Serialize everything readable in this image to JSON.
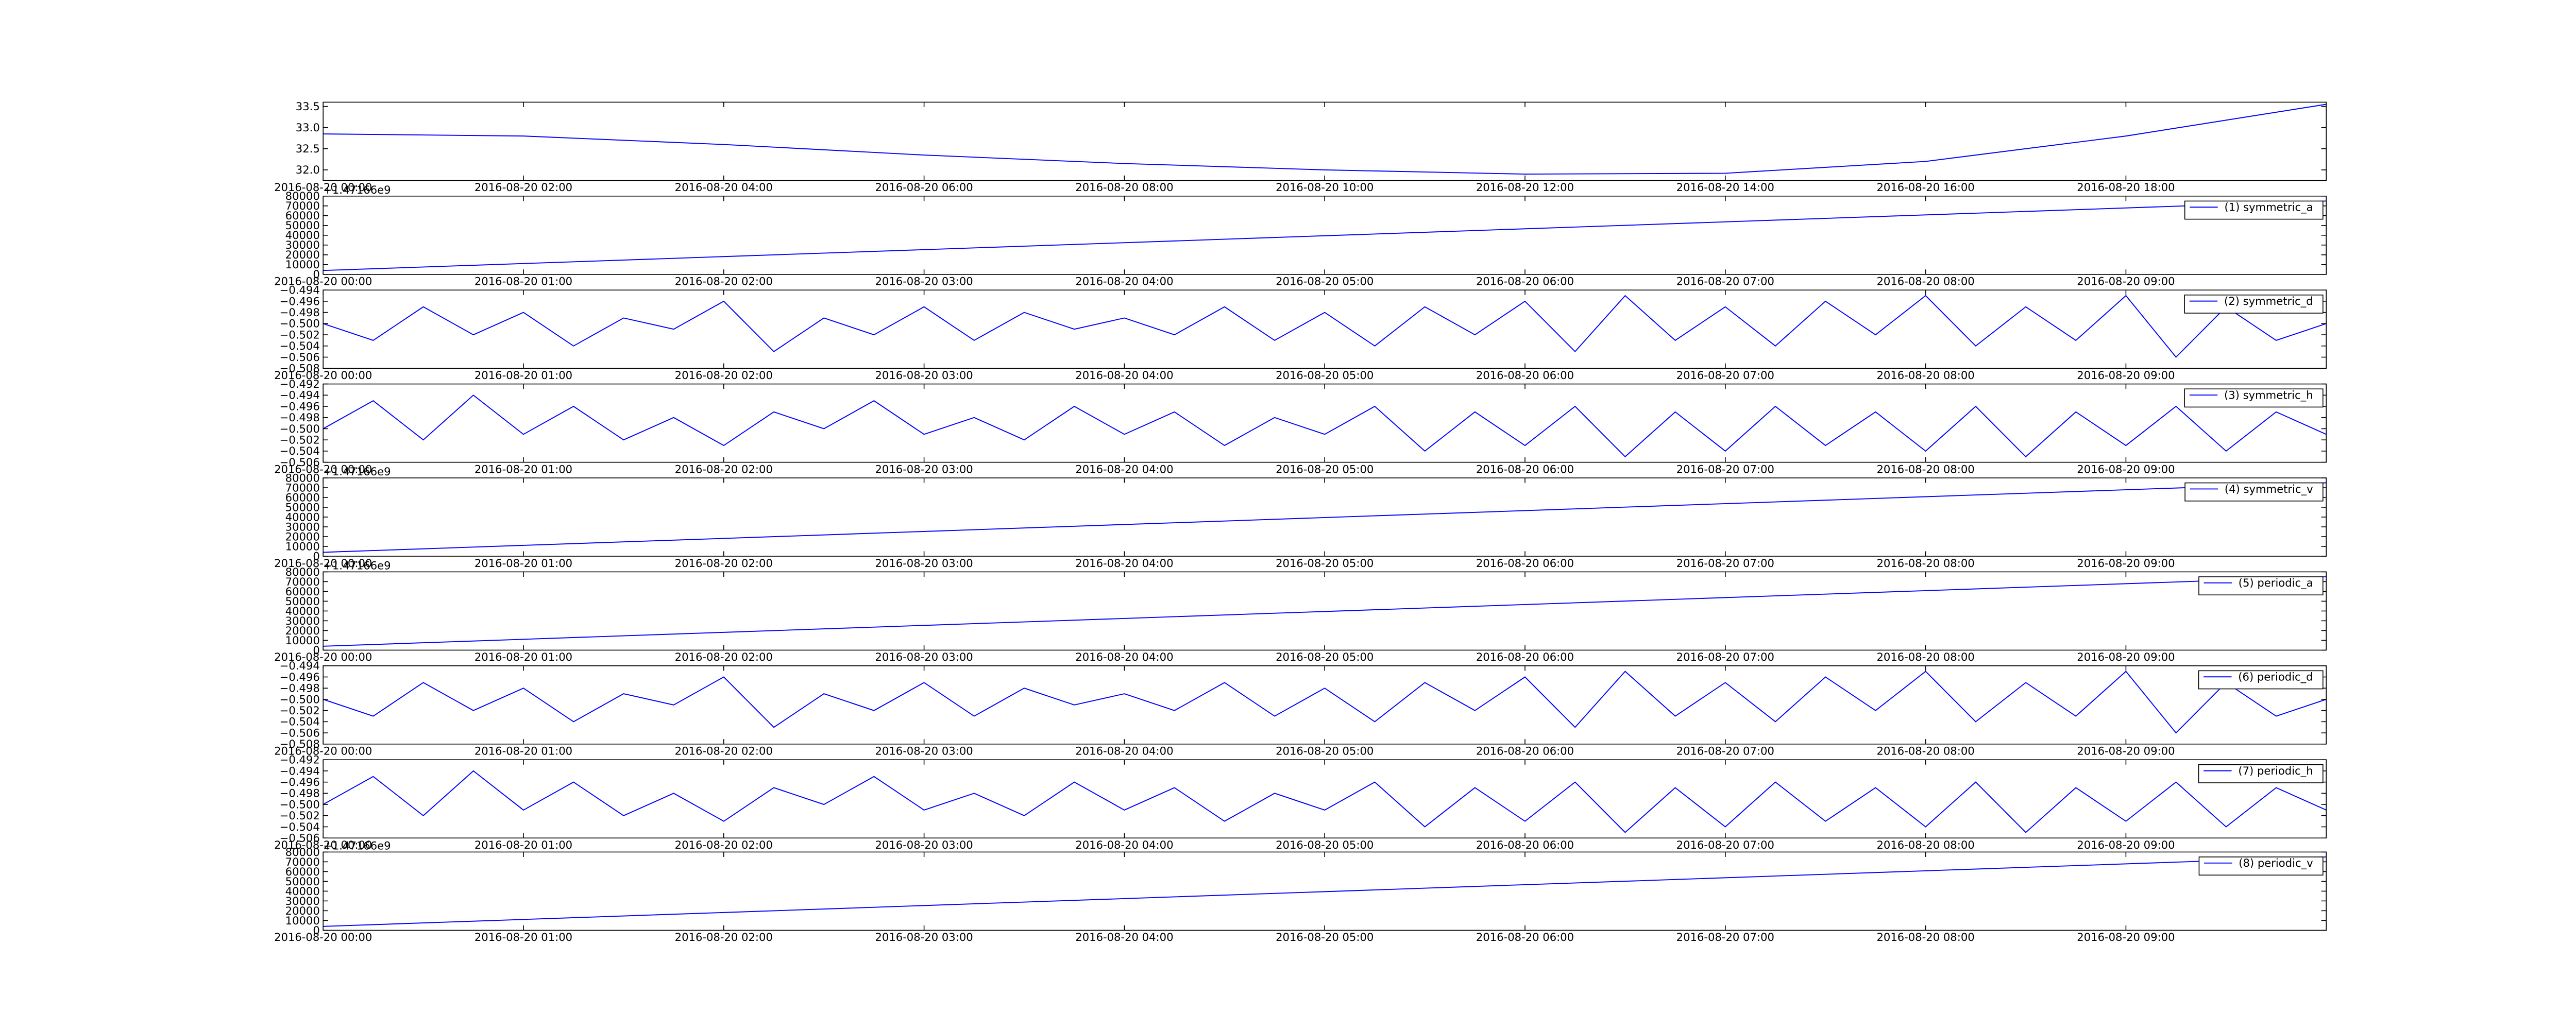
{
  "chart_data": [
    {
      "type": "line",
      "xlim": [
        "2016-08-20 00:00",
        "2016-08-20 20:00"
      ],
      "xticks": [
        "2016-08-20 00:00",
        "2016-08-20 02:00",
        "2016-08-20 04:00",
        "2016-08-20 06:00",
        "2016-08-20 08:00",
        "2016-08-20 10:00",
        "2016-08-20 12:00",
        "2016-08-20 14:00",
        "2016-08-20 16:00",
        "2016-08-20 18:00"
      ],
      "ylim": [
        31.75,
        33.6
      ],
      "yticks": [
        {
          "value": 32,
          "label": "32.0"
        },
        {
          "value": 32.5,
          "label": "32.5"
        },
        {
          "value": 33,
          "label": "33.0"
        },
        {
          "value": 33.5,
          "label": "33.5"
        }
      ],
      "x": [
        "2016-08-20 00:00",
        "2016-08-20 02:00",
        "2016-08-20 04:00",
        "2016-08-20 06:00",
        "2016-08-20 08:00",
        "2016-08-20 10:00",
        "2016-08-20 12:00",
        "2016-08-20 14:00",
        "2016-08-20 16:00",
        "2016-08-20 18:00",
        "2016-08-20 20:00"
      ],
      "series": [
        {
          "color": "#0000ff",
          "values": [
            32.85,
            32.8,
            32.6,
            32.35,
            32.15,
            32.0,
            31.9,
            31.92,
            32.2,
            32.8,
            33.55
          ]
        }
      ]
    },
    {
      "type": "line",
      "offset_label": "+1.47166e9",
      "xlim": [
        "2016-08-20 00:00",
        "2016-08-20 10:00"
      ],
      "xticks": [
        "2016-08-20 00:00",
        "2016-08-20 01:00",
        "2016-08-20 02:00",
        "2016-08-20 03:00",
        "2016-08-20 04:00",
        "2016-08-20 05:00",
        "2016-08-20 06:00",
        "2016-08-20 07:00",
        "2016-08-20 08:00",
        "2016-08-20 09:00"
      ],
      "ylim": [
        0,
        80000
      ],
      "yticks": [
        0,
        10000,
        20000,
        30000,
        40000,
        50000,
        60000,
        70000,
        80000
      ],
      "x": [
        "2016-08-20 00:00",
        "2016-08-20 05:00",
        "2016-08-20 10:00"
      ],
      "series": [
        {
          "name": "(1) symmetric_a",
          "color": "#0000ff",
          "values": [
            4000,
            39500,
            75000
          ]
        }
      ]
    },
    {
      "type": "line",
      "xlim": [
        "2016-08-20 00:00",
        "2016-08-20 10:00"
      ],
      "xticks": [
        "2016-08-20 00:00",
        "2016-08-20 01:00",
        "2016-08-20 02:00",
        "2016-08-20 03:00",
        "2016-08-20 04:00",
        "2016-08-20 05:00",
        "2016-08-20 06:00",
        "2016-08-20 07:00",
        "2016-08-20 08:00",
        "2016-08-20 09:00"
      ],
      "ylim": [
        -0.508,
        -0.494
      ],
      "yticks": [
        {
          "value": -0.508,
          "label": "−0.508"
        },
        {
          "value": -0.506,
          "label": "−0.506"
        },
        {
          "value": -0.504,
          "label": "−0.504"
        },
        {
          "value": -0.502,
          "label": "−0.502"
        },
        {
          "value": -0.5,
          "label": "−0.500"
        },
        {
          "value": -0.498,
          "label": "−0.498"
        },
        {
          "value": -0.496,
          "label": "−0.496"
        },
        {
          "value": -0.494,
          "label": "−0.494"
        }
      ],
      "x": [
        "2016-08-20 00:00",
        "2016-08-20 00:15",
        "2016-08-20 00:30",
        "2016-08-20 00:45",
        "2016-08-20 01:00",
        "2016-08-20 01:15",
        "2016-08-20 01:30",
        "2016-08-20 01:45",
        "2016-08-20 02:00",
        "2016-08-20 02:15",
        "2016-08-20 02:30",
        "2016-08-20 02:45",
        "2016-08-20 03:00",
        "2016-08-20 03:15",
        "2016-08-20 03:30",
        "2016-08-20 03:45",
        "2016-08-20 04:00",
        "2016-08-20 04:15",
        "2016-08-20 04:30",
        "2016-08-20 04:45",
        "2016-08-20 05:00",
        "2016-08-20 05:15",
        "2016-08-20 05:30",
        "2016-08-20 05:45",
        "2016-08-20 06:00",
        "2016-08-20 06:15",
        "2016-08-20 06:30",
        "2016-08-20 06:45",
        "2016-08-20 07:00",
        "2016-08-20 07:15",
        "2016-08-20 07:30",
        "2016-08-20 07:45",
        "2016-08-20 08:00",
        "2016-08-20 08:15",
        "2016-08-20 08:30",
        "2016-08-20 08:45",
        "2016-08-20 09:00",
        "2016-08-20 09:15",
        "2016-08-20 09:30",
        "2016-08-20 09:45",
        "2016-08-20 10:00"
      ],
      "series": [
        {
          "name": "(2) symmetric_d",
          "color": "#0000ff",
          "values": [
            -0.5,
            -0.503,
            -0.497,
            -0.502,
            -0.498,
            -0.504,
            -0.499,
            -0.501,
            -0.496,
            -0.505,
            -0.499,
            -0.502,
            -0.497,
            -0.503,
            -0.498,
            -0.501,
            -0.499,
            -0.502,
            -0.497,
            -0.503,
            -0.498,
            -0.504,
            -0.497,
            -0.502,
            -0.496,
            -0.505,
            -0.495,
            -0.503,
            -0.497,
            -0.504,
            -0.496,
            -0.502,
            -0.495,
            -0.504,
            -0.497,
            -0.503,
            -0.495,
            -0.506,
            -0.497,
            -0.503,
            -0.5
          ]
        }
      ]
    },
    {
      "type": "line",
      "xlim": [
        "2016-08-20 00:00",
        "2016-08-20 10:00"
      ],
      "xticks": [
        "2016-08-20 00:00",
        "2016-08-20 01:00",
        "2016-08-20 02:00",
        "2016-08-20 03:00",
        "2016-08-20 04:00",
        "2016-08-20 05:00",
        "2016-08-20 06:00",
        "2016-08-20 07:00",
        "2016-08-20 08:00",
        "2016-08-20 09:00"
      ],
      "ylim": [
        -0.506,
        -0.492
      ],
      "yticks": [
        {
          "value": -0.506,
          "label": "−0.506"
        },
        {
          "value": -0.504,
          "label": "−0.504"
        },
        {
          "value": -0.502,
          "label": "−0.502"
        },
        {
          "value": -0.5,
          "label": "−0.500"
        },
        {
          "value": -0.498,
          "label": "−0.498"
        },
        {
          "value": -0.496,
          "label": "−0.496"
        },
        {
          "value": -0.494,
          "label": "−0.494"
        },
        {
          "value": -0.492,
          "label": "−0.492"
        }
      ],
      "x": [
        "2016-08-20 00:00",
        "2016-08-20 00:15",
        "2016-08-20 00:30",
        "2016-08-20 00:45",
        "2016-08-20 01:00",
        "2016-08-20 01:15",
        "2016-08-20 01:30",
        "2016-08-20 01:45",
        "2016-08-20 02:00",
        "2016-08-20 02:15",
        "2016-08-20 02:30",
        "2016-08-20 02:45",
        "2016-08-20 03:00",
        "2016-08-20 03:15",
        "2016-08-20 03:30",
        "2016-08-20 03:45",
        "2016-08-20 04:00",
        "2016-08-20 04:15",
        "2016-08-20 04:30",
        "2016-08-20 04:45",
        "2016-08-20 05:00",
        "2016-08-20 05:15",
        "2016-08-20 05:30",
        "2016-08-20 05:45",
        "2016-08-20 06:00",
        "2016-08-20 06:15",
        "2016-08-20 06:30",
        "2016-08-20 06:45",
        "2016-08-20 07:00",
        "2016-08-20 07:15",
        "2016-08-20 07:30",
        "2016-08-20 07:45",
        "2016-08-20 08:00",
        "2016-08-20 08:15",
        "2016-08-20 08:30",
        "2016-08-20 08:45",
        "2016-08-20 09:00",
        "2016-08-20 09:15",
        "2016-08-20 09:30",
        "2016-08-20 09:45",
        "2016-08-20 10:00"
      ],
      "series": [
        {
          "name": "(3) symmetric_h",
          "color": "#0000ff",
          "values": [
            -0.5,
            -0.495,
            -0.502,
            -0.494,
            -0.501,
            -0.496,
            -0.502,
            -0.498,
            -0.503,
            -0.497,
            -0.5,
            -0.495,
            -0.501,
            -0.498,
            -0.502,
            -0.496,
            -0.501,
            -0.497,
            -0.503,
            -0.498,
            -0.501,
            -0.496,
            -0.504,
            -0.497,
            -0.503,
            -0.496,
            -0.505,
            -0.497,
            -0.504,
            -0.496,
            -0.503,
            -0.497,
            -0.504,
            -0.496,
            -0.505,
            -0.497,
            -0.503,
            -0.496,
            -0.504,
            -0.497,
            -0.501
          ]
        }
      ]
    },
    {
      "type": "line",
      "offset_label": "+1.47166e9",
      "xlim": [
        "2016-08-20 00:00",
        "2016-08-20 10:00"
      ],
      "xticks": [
        "2016-08-20 00:00",
        "2016-08-20 01:00",
        "2016-08-20 02:00",
        "2016-08-20 03:00",
        "2016-08-20 04:00",
        "2016-08-20 05:00",
        "2016-08-20 06:00",
        "2016-08-20 07:00",
        "2016-08-20 08:00",
        "2016-08-20 09:00"
      ],
      "ylim": [
        0,
        80000
      ],
      "yticks": [
        0,
        10000,
        20000,
        30000,
        40000,
        50000,
        60000,
        70000,
        80000
      ],
      "x": [
        "2016-08-20 00:00",
        "2016-08-20 05:00",
        "2016-08-20 10:00"
      ],
      "series": [
        {
          "name": "(4) symmetric_v",
          "color": "#0000ff",
          "values": [
            4000,
            39500,
            75000
          ]
        }
      ]
    },
    {
      "type": "line",
      "offset_label": "+1.47166e9",
      "xlim": [
        "2016-08-20 00:00",
        "2016-08-20 10:00"
      ],
      "xticks": [
        "2016-08-20 00:00",
        "2016-08-20 01:00",
        "2016-08-20 02:00",
        "2016-08-20 03:00",
        "2016-08-20 04:00",
        "2016-08-20 05:00",
        "2016-08-20 06:00",
        "2016-08-20 07:00",
        "2016-08-20 08:00",
        "2016-08-20 09:00"
      ],
      "ylim": [
        0,
        80000
      ],
      "yticks": [
        0,
        10000,
        20000,
        30000,
        40000,
        50000,
        60000,
        70000,
        80000
      ],
      "x": [
        "2016-08-20 00:00",
        "2016-08-20 05:00",
        "2016-08-20 10:00"
      ],
      "series": [
        {
          "name": "(5) periodic_a",
          "color": "#0000ff",
          "values": [
            4000,
            39500,
            75000
          ]
        }
      ]
    },
    {
      "type": "line",
      "xlim": [
        "2016-08-20 00:00",
        "2016-08-20 10:00"
      ],
      "xticks": [
        "2016-08-20 00:00",
        "2016-08-20 01:00",
        "2016-08-20 02:00",
        "2016-08-20 03:00",
        "2016-08-20 04:00",
        "2016-08-20 05:00",
        "2016-08-20 06:00",
        "2016-08-20 07:00",
        "2016-08-20 08:00",
        "2016-08-20 09:00"
      ],
      "ylim": [
        -0.508,
        -0.494
      ],
      "yticks": [
        {
          "value": -0.508,
          "label": "−0.508"
        },
        {
          "value": -0.506,
          "label": "−0.506"
        },
        {
          "value": -0.504,
          "label": "−0.504"
        },
        {
          "value": -0.502,
          "label": "−0.502"
        },
        {
          "value": -0.5,
          "label": "−0.500"
        },
        {
          "value": -0.498,
          "label": "−0.498"
        },
        {
          "value": -0.496,
          "label": "−0.496"
        },
        {
          "value": -0.494,
          "label": "−0.494"
        }
      ],
      "x": [
        "2016-08-20 00:00",
        "2016-08-20 00:15",
        "2016-08-20 00:30",
        "2016-08-20 00:45",
        "2016-08-20 01:00",
        "2016-08-20 01:15",
        "2016-08-20 01:30",
        "2016-08-20 01:45",
        "2016-08-20 02:00",
        "2016-08-20 02:15",
        "2016-08-20 02:30",
        "2016-08-20 02:45",
        "2016-08-20 03:00",
        "2016-08-20 03:15",
        "2016-08-20 03:30",
        "2016-08-20 03:45",
        "2016-08-20 04:00",
        "2016-08-20 04:15",
        "2016-08-20 04:30",
        "2016-08-20 04:45",
        "2016-08-20 05:00",
        "2016-08-20 05:15",
        "2016-08-20 05:30",
        "2016-08-20 05:45",
        "2016-08-20 06:00",
        "2016-08-20 06:15",
        "2016-08-20 06:30",
        "2016-08-20 06:45",
        "2016-08-20 07:00",
        "2016-08-20 07:15",
        "2016-08-20 07:30",
        "2016-08-20 07:45",
        "2016-08-20 08:00",
        "2016-08-20 08:15",
        "2016-08-20 08:30",
        "2016-08-20 08:45",
        "2016-08-20 09:00",
        "2016-08-20 09:15",
        "2016-08-20 09:30",
        "2016-08-20 09:45",
        "2016-08-20 10:00"
      ],
      "series": [
        {
          "name": "(6) periodic_d",
          "color": "#0000ff",
          "values": [
            -0.5,
            -0.503,
            -0.497,
            -0.502,
            -0.498,
            -0.504,
            -0.499,
            -0.501,
            -0.496,
            -0.505,
            -0.499,
            -0.502,
            -0.497,
            -0.503,
            -0.498,
            -0.501,
            -0.499,
            -0.502,
            -0.497,
            -0.503,
            -0.498,
            -0.504,
            -0.497,
            -0.502,
            -0.496,
            -0.505,
            -0.495,
            -0.503,
            -0.497,
            -0.504,
            -0.496,
            -0.502,
            -0.495,
            -0.504,
            -0.497,
            -0.503,
            -0.495,
            -0.506,
            -0.497,
            -0.503,
            -0.5
          ]
        }
      ]
    },
    {
      "type": "line",
      "xlim": [
        "2016-08-20 00:00",
        "2016-08-20 10:00"
      ],
      "xticks": [
        "2016-08-20 00:00",
        "2016-08-20 01:00",
        "2016-08-20 02:00",
        "2016-08-20 03:00",
        "2016-08-20 04:00",
        "2016-08-20 05:00",
        "2016-08-20 06:00",
        "2016-08-20 07:00",
        "2016-08-20 08:00",
        "2016-08-20 09:00"
      ],
      "ylim": [
        -0.506,
        -0.492
      ],
      "yticks": [
        {
          "value": -0.506,
          "label": "−0.506"
        },
        {
          "value": -0.504,
          "label": "−0.504"
        },
        {
          "value": -0.502,
          "label": "−0.502"
        },
        {
          "value": -0.5,
          "label": "−0.500"
        },
        {
          "value": -0.498,
          "label": "−0.498"
        },
        {
          "value": -0.496,
          "label": "−0.496"
        },
        {
          "value": -0.494,
          "label": "−0.494"
        },
        {
          "value": -0.492,
          "label": "−0.492"
        }
      ],
      "x": [
        "2016-08-20 00:00",
        "2016-08-20 00:15",
        "2016-08-20 00:30",
        "2016-08-20 00:45",
        "2016-08-20 01:00",
        "2016-08-20 01:15",
        "2016-08-20 01:30",
        "2016-08-20 01:45",
        "2016-08-20 02:00",
        "2016-08-20 02:15",
        "2016-08-20 02:30",
        "2016-08-20 02:45",
        "2016-08-20 03:00",
        "2016-08-20 03:15",
        "2016-08-20 03:30",
        "2016-08-20 03:45",
        "2016-08-20 04:00",
        "2016-08-20 04:15",
        "2016-08-20 04:30",
        "2016-08-20 04:45",
        "2016-08-20 05:00",
        "2016-08-20 05:15",
        "2016-08-20 05:30",
        "2016-08-20 05:45",
        "2016-08-20 06:00",
        "2016-08-20 06:15",
        "2016-08-20 06:30",
        "2016-08-20 06:45",
        "2016-08-20 07:00",
        "2016-08-20 07:15",
        "2016-08-20 07:30",
        "2016-08-20 07:45",
        "2016-08-20 08:00",
        "2016-08-20 08:15",
        "2016-08-20 08:30",
        "2016-08-20 08:45",
        "2016-08-20 09:00",
        "2016-08-20 09:15",
        "2016-08-20 09:30",
        "2016-08-20 09:45",
        "2016-08-20 10:00"
      ],
      "series": [
        {
          "name": "(7) periodic_h",
          "color": "#0000ff",
          "values": [
            -0.5,
            -0.495,
            -0.502,
            -0.494,
            -0.501,
            -0.496,
            -0.502,
            -0.498,
            -0.503,
            -0.497,
            -0.5,
            -0.495,
            -0.501,
            -0.498,
            -0.502,
            -0.496,
            -0.501,
            -0.497,
            -0.503,
            -0.498,
            -0.501,
            -0.496,
            -0.504,
            -0.497,
            -0.503,
            -0.496,
            -0.505,
            -0.497,
            -0.504,
            -0.496,
            -0.503,
            -0.497,
            -0.504,
            -0.496,
            -0.505,
            -0.497,
            -0.503,
            -0.496,
            -0.504,
            -0.497,
            -0.501
          ]
        }
      ]
    },
    {
      "type": "line",
      "offset_label": "+1.47166e9",
      "xlim": [
        "2016-08-20 00:00",
        "2016-08-20 10:00"
      ],
      "xticks": [
        "2016-08-20 00:00",
        "2016-08-20 01:00",
        "2016-08-20 02:00",
        "2016-08-20 03:00",
        "2016-08-20 04:00",
        "2016-08-20 05:00",
        "2016-08-20 06:00",
        "2016-08-20 07:00",
        "2016-08-20 08:00",
        "2016-08-20 09:00"
      ],
      "ylim": [
        0,
        80000
      ],
      "yticks": [
        0,
        10000,
        20000,
        30000,
        40000,
        50000,
        60000,
        70000,
        80000
      ],
      "x": [
        "2016-08-20 00:00",
        "2016-08-20 05:00",
        "2016-08-20 10:00"
      ],
      "series": [
        {
          "name": "(8) periodic_v",
          "color": "#0000ff",
          "values": [
            4000,
            39500,
            75000
          ]
        }
      ]
    }
  ]
}
